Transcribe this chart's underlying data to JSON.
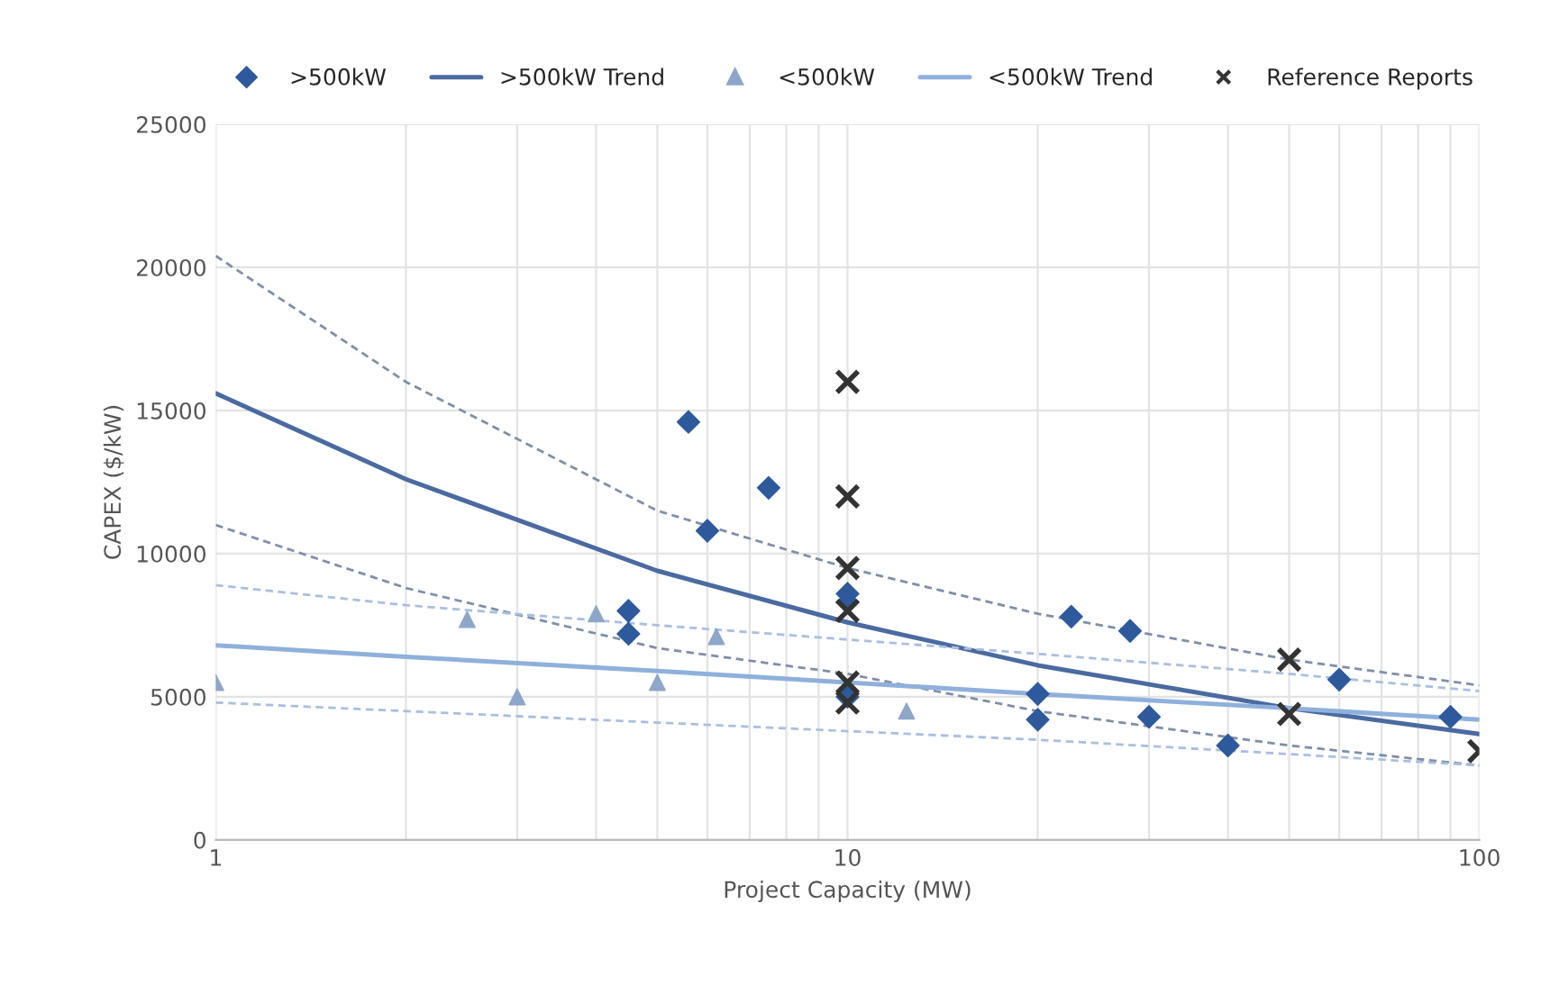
{
  "chart_data": {
    "type": "scatter",
    "xlabel": "Project Capacity (MW)",
    "ylabel": "CAPEX ($/kW)",
    "log": "x",
    "grid": true,
    "legend": "top",
    "xlim": [
      1,
      100
    ],
    "ylim": [
      0,
      25000
    ],
    "xticks": [
      1,
      {
        "value": 2,
        "label": null
      },
      {
        "value": 3,
        "label": null
      },
      {
        "value": 4,
        "label": null
      },
      {
        "value": 5,
        "label": null
      },
      {
        "value": 6,
        "label": null
      },
      {
        "value": 7,
        "label": null
      },
      {
        "value": 8,
        "label": null
      },
      {
        "value": 9,
        "label": null
      },
      10,
      {
        "value": 20,
        "label": null
      },
      {
        "value": 30,
        "label": null
      },
      {
        "value": 40,
        "label": null
      },
      {
        "value": 50,
        "label": null
      },
      {
        "value": 60,
        "label": null
      },
      {
        "value": 70,
        "label": null
      },
      {
        "value": 80,
        "label": null
      },
      {
        "value": 90,
        "label": null
      },
      100
    ],
    "yticks": [
      0,
      5000,
      10000,
      15000,
      20000,
      25000
    ],
    "series": [
      {
        "name": ">500kW",
        "marker": "diamond",
        "color": "#2e5a9c",
        "x": [
          5.6,
          7.5,
          6,
          4.5,
          4.5,
          10,
          10,
          10,
          22.6,
          28,
          20,
          20,
          30,
          40,
          60,
          90
        ],
        "values": [
          14600,
          12300,
          10800,
          8000,
          7200,
          8600,
          8300,
          5000,
          7800,
          7300,
          5100,
          4200,
          4300,
          3300,
          5600,
          4300
        ]
      },
      {
        "name": ">500kW Trend",
        "type": "line",
        "marker": "none",
        "line_style": "solid",
        "color": "#4a6aa0",
        "x": [
          1,
          2,
          5,
          10,
          20,
          50,
          100
        ],
        "values": [
          15600,
          12600,
          9400,
          7600,
          6100,
          4600,
          3700
        ]
      },
      {
        "type": "line",
        "marker": "none",
        "line_style": "dashed",
        "color": "#7f8fa8",
        "x": [
          1,
          2,
          5,
          10,
          20,
          50,
          100
        ],
        "values": [
          20400,
          16000,
          11500,
          9500,
          7900,
          6300,
          5400
        ]
      },
      {
        "type": "line",
        "marker": "none",
        "line_style": "dashed",
        "color": "#7f8fa8",
        "x": [
          1,
          2,
          5,
          10,
          20,
          50,
          100
        ],
        "values": [
          11000,
          8800,
          6700,
          5800,
          4500,
          3300,
          2600
        ]
      },
      {
        "name": "<500kW",
        "marker": "triangle",
        "color": "#8ea6c9",
        "x": [
          1,
          2.5,
          3,
          4,
          5,
          6.2,
          12.4
        ],
        "values": [
          5500,
          7700,
          5000,
          7900,
          5500,
          7100,
          4500
        ]
      },
      {
        "name": "<500kW Trend",
        "type": "line",
        "marker": "none",
        "line_style": "solid",
        "color": "#8fb0dc",
        "x": [
          1,
          2,
          5,
          10,
          20,
          50,
          100
        ],
        "values": [
          6800,
          6400,
          5900,
          5500,
          5100,
          4600,
          4200
        ]
      },
      {
        "type": "line",
        "marker": "none",
        "line_style": "dashed",
        "color": "#a9bfdf",
        "x": [
          1,
          2,
          5,
          10,
          20,
          50,
          100
        ],
        "values": [
          8900,
          8200,
          7500,
          7000,
          6500,
          5800,
          5200
        ]
      },
      {
        "type": "line",
        "marker": "none",
        "line_style": "dashed",
        "color": "#a9bfdf",
        "x": [
          1,
          2,
          5,
          10,
          20,
          50,
          100
        ],
        "values": [
          4800,
          4500,
          4100,
          3800,
          3500,
          3000,
          2600
        ]
      },
      {
        "name": "Reference Reports",
        "marker": "cross",
        "color": "#333333",
        "x": [
          10,
          10,
          10,
          10,
          10,
          10,
          50,
          50,
          100
        ],
        "values": [
          16000,
          12000,
          9500,
          8000,
          5500,
          4800,
          6300,
          4400,
          3100
        ]
      }
    ]
  }
}
